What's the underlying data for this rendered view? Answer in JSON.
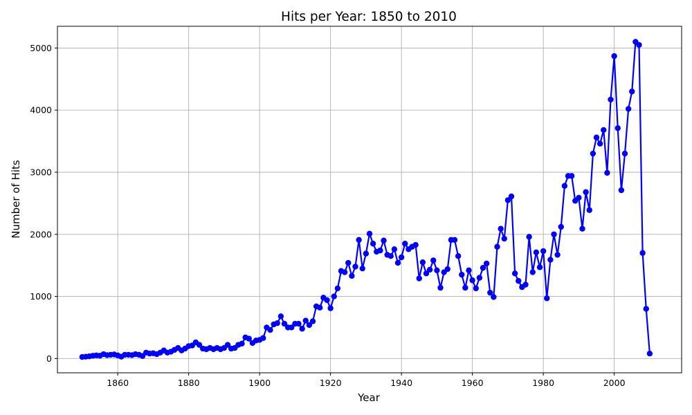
{
  "chart_data": {
    "type": "line",
    "title": "Hits per Year: 1850 to 2010",
    "xlabel": "Year",
    "ylabel": "Number of Hits",
    "xlim": [
      1843,
      2019
    ],
    "ylim": [
      -230,
      5350
    ],
    "xticks": [
      1860,
      1880,
      1900,
      1920,
      1940,
      1960,
      1980,
      2000
    ],
    "yticks": [
      0,
      1000,
      2000,
      3000,
      4000,
      5000
    ],
    "grid": true,
    "line_color": "#0000ff",
    "marker": "circle",
    "series": [
      {
        "name": "Hits",
        "x": [
          1850,
          1851,
          1852,
          1853,
          1854,
          1855,
          1856,
          1857,
          1858,
          1859,
          1860,
          1861,
          1862,
          1863,
          1864,
          1865,
          1866,
          1867,
          1868,
          1869,
          1870,
          1871,
          1872,
          1873,
          1874,
          1875,
          1876,
          1877,
          1878,
          1879,
          1880,
          1881,
          1882,
          1883,
          1884,
          1885,
          1886,
          1887,
          1888,
          1889,
          1890,
          1891,
          1892,
          1893,
          1894,
          1895,
          1896,
          1897,
          1898,
          1899,
          1900,
          1901,
          1902,
          1903,
          1904,
          1905,
          1906,
          1907,
          1908,
          1909,
          1910,
          1911,
          1912,
          1913,
          1914,
          1915,
          1916,
          1917,
          1918,
          1919,
          1920,
          1921,
          1922,
          1923,
          1924,
          1925,
          1926,
          1927,
          1928,
          1929,
          1930,
          1931,
          1932,
          1933,
          1934,
          1935,
          1936,
          1937,
          1938,
          1939,
          1940,
          1941,
          1942,
          1943,
          1944,
          1945,
          1946,
          1947,
          1948,
          1949,
          1950,
          1951,
          1952,
          1953,
          1954,
          1955,
          1956,
          1957,
          1958,
          1959,
          1960,
          1961,
          1962,
          1963,
          1964,
          1965,
          1966,
          1967,
          1968,
          1969,
          1970,
          1971,
          1972,
          1973,
          1974,
          1975,
          1976,
          1977,
          1978,
          1979,
          1980,
          1981,
          1982,
          1983,
          1984,
          1985,
          1986,
          1987,
          1988,
          1989,
          1990,
          1991,
          1992,
          1993,
          1994,
          1995,
          1996,
          1997,
          1998,
          1999,
          2000,
          2001,
          2002,
          2003,
          2004,
          2005,
          2006,
          2007,
          2008,
          2009,
          2010
        ],
        "y": [
          25,
          30,
          35,
          45,
          50,
          45,
          70,
          55,
          60,
          65,
          50,
          30,
          60,
          60,
          55,
          70,
          60,
          40,
          95,
          80,
          85,
          70,
          95,
          130,
          95,
          110,
          140,
          170,
          130,
          160,
          200,
          210,
          260,
          220,
          160,
          150,
          170,
          150,
          170,
          150,
          170,
          220,
          160,
          170,
          220,
          240,
          340,
          320,
          250,
          290,
          300,
          330,
          500,
          460,
          550,
          570,
          680,
          560,
          500,
          500,
          560,
          560,
          480,
          610,
          540,
          600,
          840,
          820,
          980,
          940,
          810,
          1000,
          1130,
          1410,
          1390,
          1540,
          1330,
          1480,
          1910,
          1450,
          1690,
          2010,
          1850,
          1720,
          1740,
          1900,
          1670,
          1650,
          1760,
          1540,
          1630,
          1850,
          1760,
          1800,
          1830,
          1290,
          1550,
          1370,
          1430,
          1580,
          1420,
          1140,
          1390,
          1440,
          1910,
          1910,
          1650,
          1350,
          1140,
          1420,
          1260,
          1130,
          1300,
          1460,
          1530,
          1060,
          990,
          1800,
          2090,
          1930,
          2550,
          2610,
          1370,
          1250,
          1150,
          1190,
          1960,
          1390,
          1710,
          1470,
          1730,
          970,
          1590,
          2000,
          1670,
          2120,
          2780,
          2940,
          2940,
          2540,
          2590,
          2090,
          2680,
          2390,
          3300,
          3560,
          3460,
          3680,
          2990,
          4170,
          4870,
          3710,
          2710,
          3300,
          4020,
          4300,
          5100,
          5050,
          1700,
          800,
          80
        ]
      }
    ]
  }
}
